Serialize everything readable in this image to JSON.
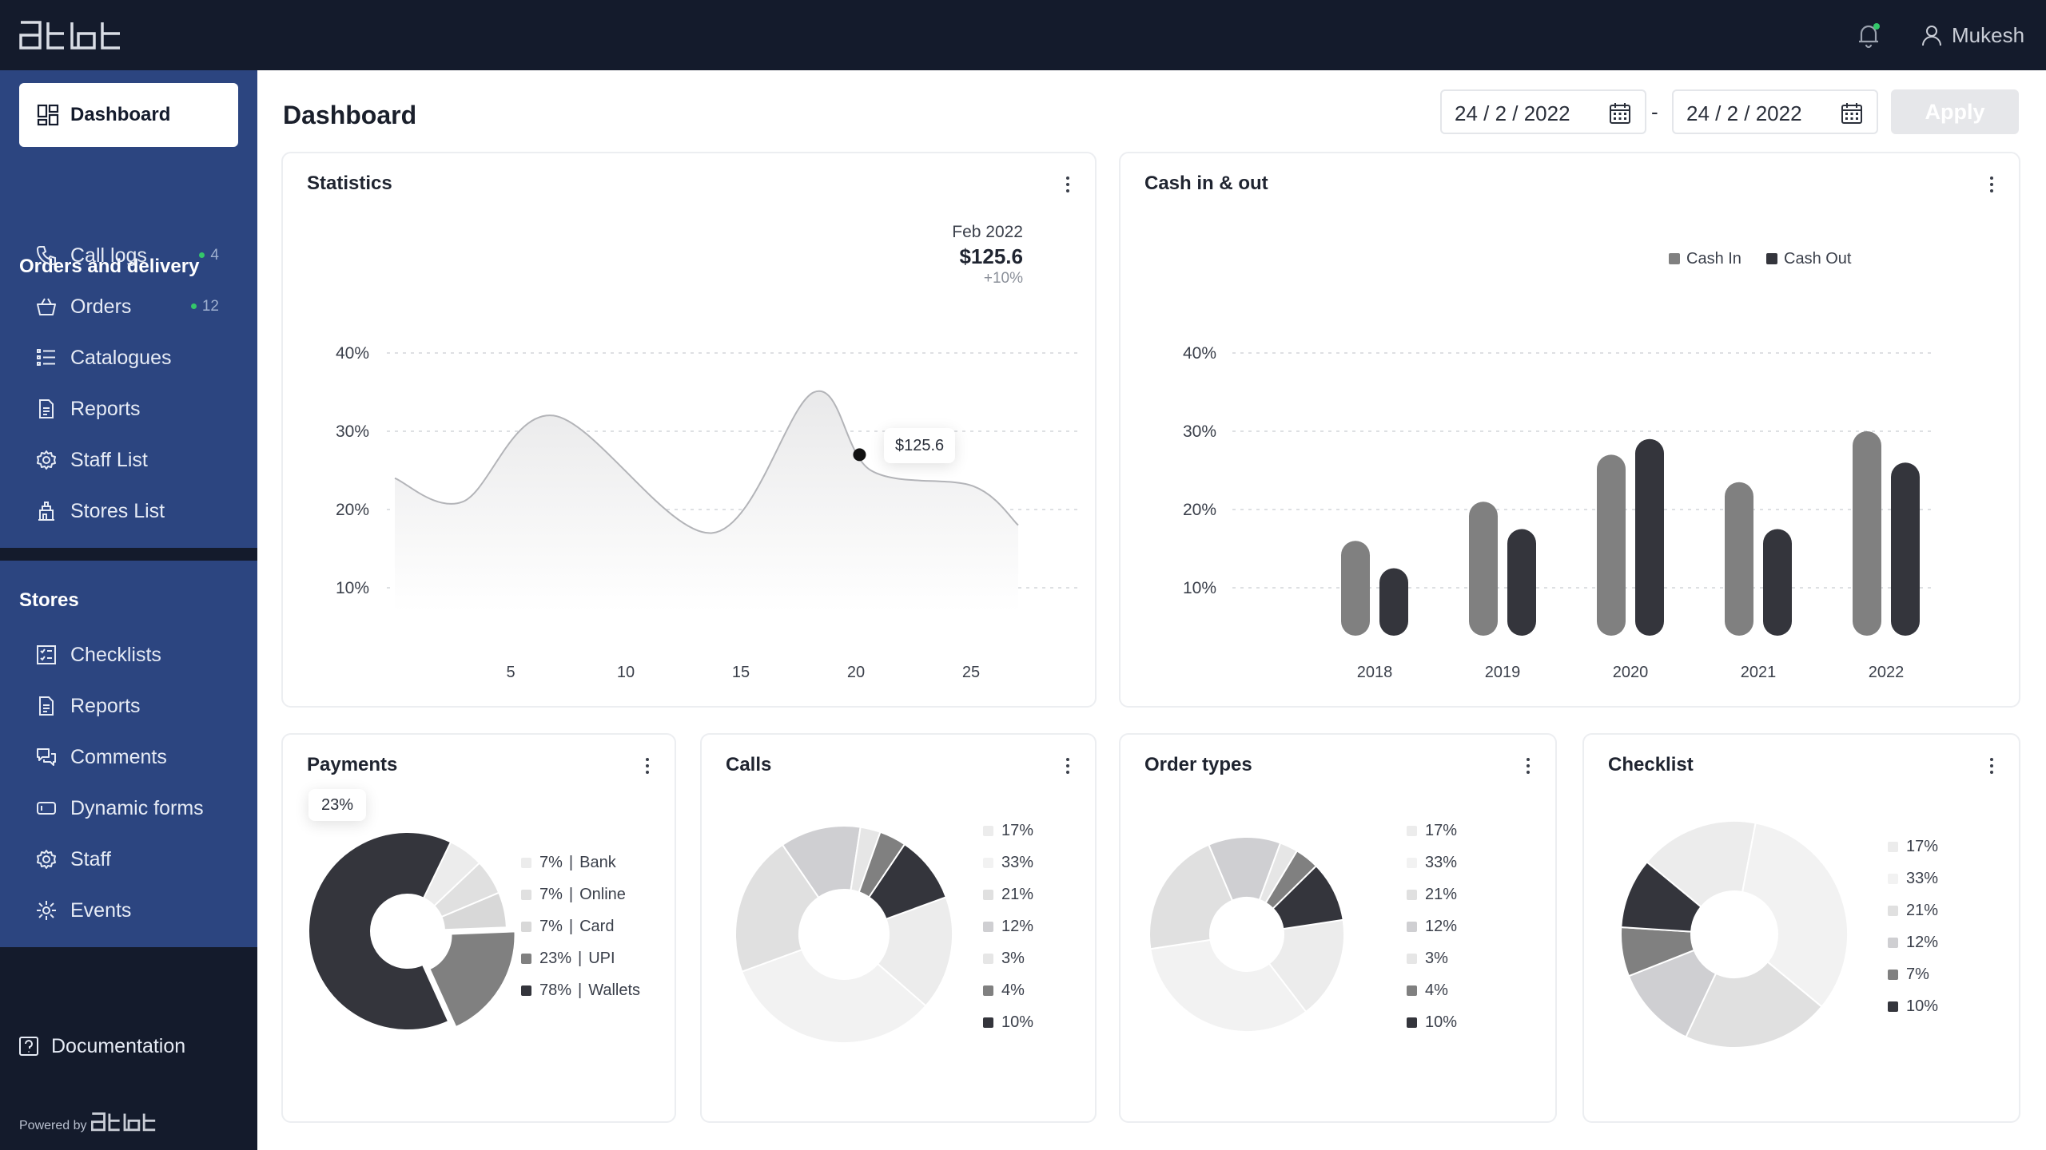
{
  "topbar": {
    "logo_text": "ətbt",
    "notifications_icon": "bell-icon",
    "user_icon": "user-icon",
    "user_name": "Mukesh"
  },
  "sidebar": {
    "dashboard_label": "Dashboard",
    "sections": [
      {
        "title": "Orders and delivery",
        "items": [
          {
            "label": "Call logs",
            "icon": "phone-icon",
            "badge": "4"
          },
          {
            "label": "Orders",
            "icon": "basket-icon",
            "badge": "12"
          },
          {
            "label": "Catalogues",
            "icon": "list-icon"
          },
          {
            "label": "Reports",
            "icon": "document-icon"
          },
          {
            "label": "Staff List",
            "icon": "gear-icon"
          },
          {
            "label": "Stores List",
            "icon": "store-icon"
          }
        ]
      },
      {
        "title": "Stores",
        "items": [
          {
            "label": "Checklists",
            "icon": "checklist-icon"
          },
          {
            "label": "Reports",
            "icon": "document-icon"
          },
          {
            "label": "Comments",
            "icon": "comments-icon"
          },
          {
            "label": "Dynamic forms",
            "icon": "form-icon"
          },
          {
            "label": "Staff",
            "icon": "gear-icon"
          },
          {
            "label": "Events",
            "icon": "events-icon"
          }
        ]
      }
    ],
    "documentation_label": "Documentation",
    "powered_by": "Powered by"
  },
  "header": {
    "title": "Dashboard",
    "date_from": "24 / 2 / 2022",
    "date_separator": "-",
    "date_to": "24 / 2 / 2022",
    "apply_label": "Apply"
  },
  "colors": {
    "topbar": "#141b2c",
    "sidebar_section": "#2c4580",
    "badge_dot": "#34c76a",
    "apply_disabled": "#e6e7ea"
  },
  "statistics": {
    "title": "Statistics",
    "summary_period": "Feb 2022",
    "summary_value": "$125.6",
    "summary_change": "+10%",
    "tooltip": "$125.6"
  },
  "cash": {
    "title": "Cash in & out"
  },
  "payments": {
    "title": "Payments",
    "tooltip": "23%"
  },
  "calls": {
    "title": "Calls"
  },
  "order_types": {
    "title": "Order types"
  },
  "checklist": {
    "title": "Checklist"
  },
  "chart_data": [
    {
      "type": "area",
      "title": "Statistics",
      "yticks": [
        "40%",
        "30%",
        "20%",
        "10%"
      ],
      "xticks": [
        "5",
        "10",
        "15",
        "20",
        "25"
      ],
      "ylim": [
        10,
        40
      ],
      "xlim": [
        0,
        27.5
      ],
      "x": [
        0,
        3,
        7,
        14,
        18.5,
        21,
        25.5,
        27.5
      ],
      "y": [
        24,
        21,
        32,
        17,
        35,
        25,
        23,
        18
      ],
      "highlight": {
        "x": 20.5,
        "y": 27,
        "label": "$125.6"
      },
      "grid": true
    },
    {
      "type": "bar",
      "title": "Cash in & out",
      "categories": [
        "2018",
        "2019",
        "2020",
        "2021",
        "2022"
      ],
      "series": [
        {
          "name": "Cash In",
          "values": [
            16,
            21,
            27,
            23.5,
            30
          ],
          "color": "#808080"
        },
        {
          "name": "Cash Out",
          "values": [
            12.5,
            17.5,
            29,
            17.5,
            26
          ],
          "color": "#34353c"
        }
      ],
      "yticks": [
        "40%",
        "30%",
        "20%",
        "10%"
      ],
      "ylim": [
        10,
        40
      ],
      "legend": "top-right",
      "grid": true
    },
    {
      "type": "pie",
      "title": "Payments",
      "labels": [
        "Bank",
        "Online",
        "Card",
        "UPI",
        "Wallets"
      ],
      "values": [
        7,
        7,
        7,
        23,
        78
      ],
      "legend": [
        {
          "value": "7%",
          "label": "Bank",
          "color": "#ececec"
        },
        {
          "value": "7%",
          "label": "Online",
          "color": "#e0e0e0"
        },
        {
          "value": "7%",
          "label": "Card",
          "color": "#d8d8d8"
        },
        {
          "value": "23%",
          "label": "UPI",
          "color": "#808080"
        },
        {
          "value": "78%",
          "label": "Wallets",
          "color": "#34353c"
        }
      ]
    },
    {
      "type": "pie",
      "title": "Calls",
      "values": [
        17,
        33,
        21,
        12,
        3,
        4,
        10
      ],
      "legend": [
        {
          "value": "17%",
          "color": "#ececec"
        },
        {
          "value": "33%",
          "color": "#f2f2f2"
        },
        {
          "value": "21%",
          "color": "#e0e0e0"
        },
        {
          "value": "12%",
          "color": "#cfcfd2"
        },
        {
          "value": "3%",
          "color": "#e6e6e6"
        },
        {
          "value": "4%",
          "color": "#808080"
        },
        {
          "value": "10%",
          "color": "#34353c"
        }
      ]
    },
    {
      "type": "pie",
      "title": "Order types",
      "values": [
        17,
        33,
        21,
        12,
        3,
        4,
        10
      ],
      "legend": [
        {
          "value": "17%",
          "color": "#ececec"
        },
        {
          "value": "33%",
          "color": "#f2f2f2"
        },
        {
          "value": "21%",
          "color": "#e0e0e0"
        },
        {
          "value": "12%",
          "color": "#cfcfd2"
        },
        {
          "value": "3%",
          "color": "#e6e6e6"
        },
        {
          "value": "4%",
          "color": "#808080"
        },
        {
          "value": "10%",
          "color": "#34353c"
        }
      ]
    },
    {
      "type": "pie",
      "title": "Checklist",
      "values": [
        17,
        33,
        21,
        12,
        7,
        10
      ],
      "legend": [
        {
          "value": "17%",
          "color": "#ececec"
        },
        {
          "value": "33%",
          "color": "#f2f2f2"
        },
        {
          "value": "21%",
          "color": "#e0e0e0"
        },
        {
          "value": "12%",
          "color": "#cfcfd2"
        },
        {
          "value": "7%",
          "color": "#808080"
        },
        {
          "value": "10%",
          "color": "#34353c"
        }
      ]
    }
  ]
}
